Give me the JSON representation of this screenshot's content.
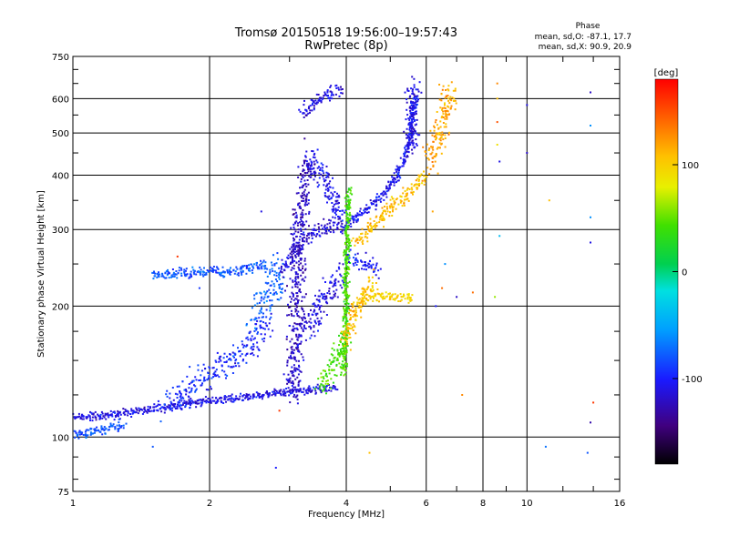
{
  "chart_data": {
    "type": "scatter",
    "title": "Tromsø 20150518 19:56:00–19:57:43",
    "subtitle": "RwPretec (8p)",
    "xlabel": "Frequency [MHz]",
    "ylabel": "Stationary phase Virtual Height [km]",
    "xscale": "log",
    "yscale": "log",
    "xlim": [
      1,
      16
    ],
    "ylim": [
      75,
      750
    ],
    "xticks": [
      1,
      2,
      4,
      6,
      8,
      10,
      16
    ],
    "xtick_labels": [
      "1",
      "2",
      "4",
      "6",
      "8",
      "10",
      "16"
    ],
    "yticks": [
      75,
      100,
      200,
      300,
      400,
      500,
      600,
      750
    ],
    "ytick_labels": [
      "75",
      "100",
      "200",
      "300",
      "400",
      "500",
      "600",
      "750"
    ],
    "grid": true,
    "stats": {
      "heading": "Phase",
      "line_o": "mean, sd,O: -87.1, 17.7",
      "line_x": "mean, sd,X:  90.9, 20.9"
    },
    "colorbar": {
      "label": "[deg]",
      "range": [
        -180,
        180
      ],
      "ticks": [
        100,
        0,
        -100
      ],
      "tick_labels": [
        "100",
        "0",
        "-100"
      ],
      "colormap": "rainbow"
    },
    "traces": [
      {
        "x": [
          1.0,
          1.2,
          1.5,
          1.8,
          2.2,
          2.6,
          3.0,
          3.4,
          3.8
        ],
        "y": [
          111,
          112,
          116,
          119,
          122,
          125,
          127,
          129,
          131
        ],
        "phase": -110,
        "spread": 0.015
      },
      {
        "x": [
          1.0,
          1.15,
          1.3
        ],
        "y": [
          102,
          103,
          107
        ],
        "phase": -80,
        "spread": 0.02
      },
      {
        "x": [
          1.6,
          2.0,
          2.4,
          2.7
        ],
        "y": [
          118,
          140,
          158,
          185
        ],
        "phase": -95,
        "spread": 0.05
      },
      {
        "x": [
          1.5,
          1.8,
          2.2,
          2.7
        ],
        "y": [
          235,
          237,
          240,
          248
        ],
        "phase": -80,
        "spread": 0.02
      },
      {
        "x": [
          2.5,
          2.75,
          2.85
        ],
        "y": [
          190,
          215,
          250
        ],
        "phase": -75,
        "spread": 0.06
      },
      {
        "x": [
          2.9,
          3.1,
          3.3,
          3.5,
          3.9
        ],
        "y": [
          240,
          270,
          290,
          300,
          315
        ],
        "phase": -115,
        "spread": 0.03
      },
      {
        "x": [
          3.05,
          3.1,
          3.15,
          3.2,
          3.3
        ],
        "y": [
          125,
          200,
          300,
          350,
          440
        ],
        "phase": -120,
        "spread": 0.05
      },
      {
        "x": [
          3.3,
          3.6,
          3.9
        ],
        "y": [
          440,
          390,
          320
        ],
        "phase": -105,
        "spread": 0.04
      },
      {
        "x": [
          3.2,
          3.5,
          3.9
        ],
        "y": [
          170,
          200,
          240
        ],
        "phase": -110,
        "spread": 0.05
      },
      {
        "x": [
          3.2,
          3.5,
          3.9
        ],
        "y": [
          550,
          600,
          625
        ],
        "phase": -110,
        "spread": 0.03
      },
      {
        "x": [
          3.9,
          4.4,
          4.8,
          5.2,
          5.5,
          5.7
        ],
        "y": [
          300,
          330,
          360,
          400,
          470,
          610
        ],
        "phase": -105,
        "spread": 0.02
      },
      {
        "x": [
          5.55,
          5.65
        ],
        "y": [
          460,
          650
        ],
        "phase": -110,
        "spread": 0.04
      },
      {
        "x": [
          3.5,
          3.8,
          3.95
        ],
        "y": [
          130,
          150,
          170
        ],
        "phase": 40,
        "spread": 0.04
      },
      {
        "x": [
          3.95,
          4.0,
          4.05
        ],
        "y": [
          140,
          230,
          370
        ],
        "phase": 40,
        "spread": 0.02
      },
      {
        "x": [
          4.3,
          4.6,
          5.0,
          5.6
        ],
        "y": [
          205,
          210,
          210,
          210
        ],
        "phase": 100,
        "spread": 0.02
      },
      {
        "x": [
          4.2,
          4.5,
          4.9,
          5.4,
          6.0
        ],
        "y": [
          280,
          300,
          330,
          360,
          400
        ],
        "phase": 110,
        "spread": 0.03
      },
      {
        "x": [
          6.1,
          6.4,
          6.8
        ],
        "y": [
          420,
          500,
          640
        ],
        "phase": 120,
        "spread": 0.05
      },
      {
        "x": [
          4.1,
          4.4,
          4.7
        ],
        "y": [
          260,
          250,
          240
        ],
        "phase": -100,
        "spread": 0.03
      },
      {
        "x": [
          4.0,
          4.2,
          4.6
        ],
        "y": [
          165,
          200,
          230
        ],
        "phase": 110,
        "spread": 0.04
      }
    ],
    "scatter_points": [
      {
        "x": 8.6,
        "y": 650,
        "phase": 130
      },
      {
        "x": 8.6,
        "y": 600,
        "phase": 110
      },
      {
        "x": 8.6,
        "y": 530,
        "phase": 150
      },
      {
        "x": 8.6,
        "y": 470,
        "phase": 90
      },
      {
        "x": 8.7,
        "y": 430,
        "phase": -110
      },
      {
        "x": 8.5,
        "y": 210,
        "phase": 60
      },
      {
        "x": 8.7,
        "y": 290,
        "phase": -40
      },
      {
        "x": 10.0,
        "y": 450,
        "phase": -120
      },
      {
        "x": 10.0,
        "y": 580,
        "phase": -110
      },
      {
        "x": 11.2,
        "y": 350,
        "phase": 110
      },
      {
        "x": 13.8,
        "y": 620,
        "phase": -120
      },
      {
        "x": 13.8,
        "y": 520,
        "phase": -60
      },
      {
        "x": 13.8,
        "y": 320,
        "phase": -60
      },
      {
        "x": 13.8,
        "y": 280,
        "phase": -110
      },
      {
        "x": 14.0,
        "y": 120,
        "phase": 160
      },
      {
        "x": 13.8,
        "y": 108,
        "phase": -130
      },
      {
        "x": 11.0,
        "y": 95,
        "phase": -70
      },
      {
        "x": 13.6,
        "y": 92,
        "phase": -80
      },
      {
        "x": 6.3,
        "y": 200,
        "phase": -100
      },
      {
        "x": 6.5,
        "y": 220,
        "phase": 140
      },
      {
        "x": 7.0,
        "y": 210,
        "phase": -120
      },
      {
        "x": 7.6,
        "y": 215,
        "phase": 140
      },
      {
        "x": 6.2,
        "y": 330,
        "phase": 120
      },
      {
        "x": 6.6,
        "y": 250,
        "phase": -60
      },
      {
        "x": 2.8,
        "y": 85,
        "phase": -100
      },
      {
        "x": 1.5,
        "y": 95,
        "phase": -80
      },
      {
        "x": 2.85,
        "y": 115,
        "phase": 160
      },
      {
        "x": 4.5,
        "y": 92,
        "phase": 110
      },
      {
        "x": 7.2,
        "y": 125,
        "phase": 130
      },
      {
        "x": 1.9,
        "y": 220,
        "phase": -90
      },
      {
        "x": 2.6,
        "y": 330,
        "phase": -110
      },
      {
        "x": 1.7,
        "y": 260,
        "phase": 160
      }
    ]
  }
}
